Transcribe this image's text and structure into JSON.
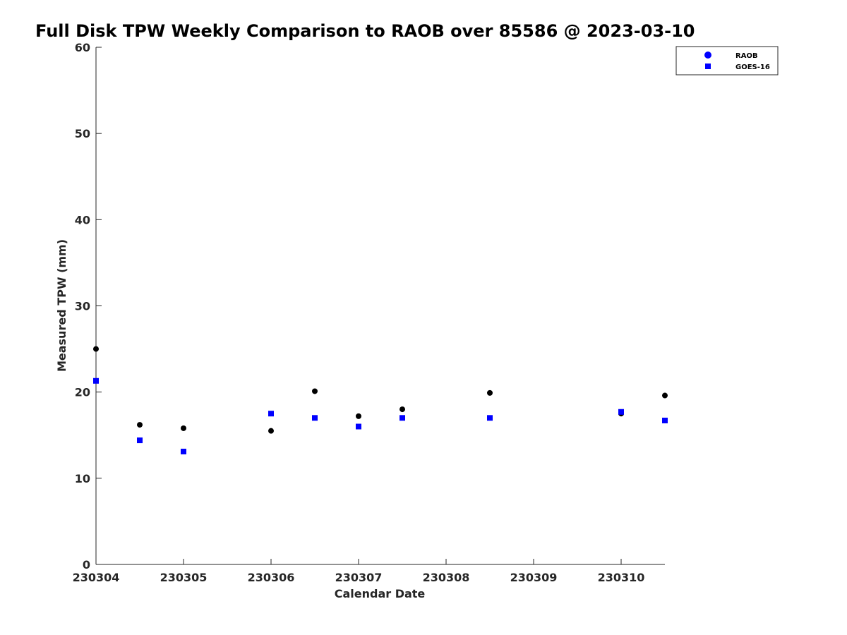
{
  "chart_data": {
    "type": "scatter",
    "title": "Full Disk TPW Weekly Comparison to RAOB over 85586 @ 2023-03-10",
    "xlabel": "Calendar Date",
    "ylabel": "Measured TPW (mm)",
    "xlim": [
      "2023-03-04 00:00",
      "2023-03-10 12:00"
    ],
    "ylim": [
      0,
      60
    ],
    "xticks": [
      {
        "value": "2023-03-04 00:00",
        "label": "230304"
      },
      {
        "value": "2023-03-05 00:00",
        "label": "230305"
      },
      {
        "value": "2023-03-06 00:00",
        "label": "230306"
      },
      {
        "value": "2023-03-07 00:00",
        "label": "230307"
      },
      {
        "value": "2023-03-08 00:00",
        "label": "230308"
      },
      {
        "value": "2023-03-09 00:00",
        "label": "230309"
      },
      {
        "value": "2023-03-10 00:00",
        "label": "230310"
      }
    ],
    "yticks": [
      0,
      10,
      20,
      30,
      40,
      50,
      60
    ],
    "grid": false,
    "legend_position": "top-right",
    "series": [
      {
        "name": "RAOB",
        "marker": "circle",
        "color": "#000000",
        "legend_color": "#0000ff",
        "points": [
          {
            "x": "2023-03-04 00:00",
            "y": 25.0
          },
          {
            "x": "2023-03-04 12:00",
            "y": 16.2
          },
          {
            "x": "2023-03-05 00:00",
            "y": 15.8
          },
          {
            "x": "2023-03-06 00:00",
            "y": 15.5
          },
          {
            "x": "2023-03-06 12:00",
            "y": 20.1
          },
          {
            "x": "2023-03-07 00:00",
            "y": 17.2
          },
          {
            "x": "2023-03-07 12:00",
            "y": 18.0
          },
          {
            "x": "2023-03-08 12:00",
            "y": 19.9
          },
          {
            "x": "2023-03-10 00:00",
            "y": 17.5
          },
          {
            "x": "2023-03-10 12:00",
            "y": 19.6
          }
        ]
      },
      {
        "name": "GOES-16",
        "marker": "square",
        "color": "#0000ff",
        "legend_color": "#0000ff",
        "points": [
          {
            "x": "2023-03-04 00:00",
            "y": 21.3
          },
          {
            "x": "2023-03-04 12:00",
            "y": 14.4
          },
          {
            "x": "2023-03-05 00:00",
            "y": 13.1
          },
          {
            "x": "2023-03-06 00:00",
            "y": 17.5
          },
          {
            "x": "2023-03-06 12:00",
            "y": 17.0
          },
          {
            "x": "2023-03-07 00:00",
            "y": 16.0
          },
          {
            "x": "2023-03-07 12:00",
            "y": 17.0
          },
          {
            "x": "2023-03-08 12:00",
            "y": 17.0
          },
          {
            "x": "2023-03-10 00:00",
            "y": 17.7
          },
          {
            "x": "2023-03-10 12:00",
            "y": 16.7
          }
        ]
      }
    ]
  }
}
